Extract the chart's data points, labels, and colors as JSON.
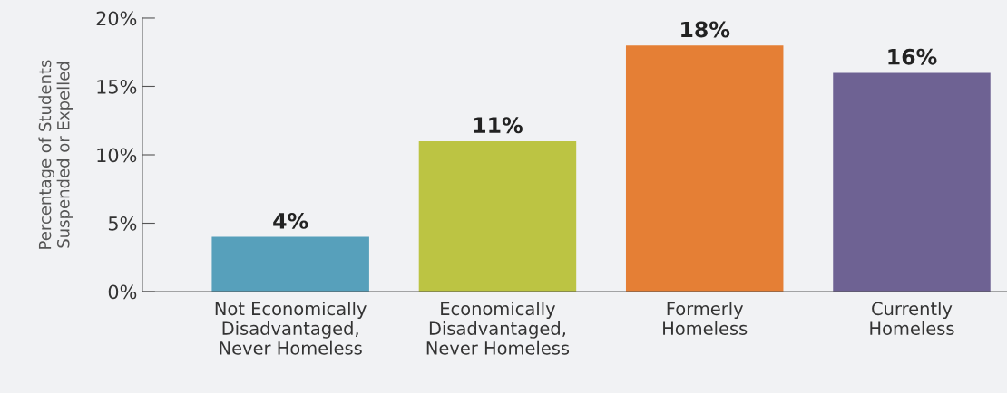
{
  "chart_data": {
    "type": "bar",
    "ylabel": "Percentage of Students\nSuspended or Expelled",
    "categories": [
      "Not Economically\nDisadvantaged,\nNever Homeless",
      "Economically\nDisadvantaged,\nNever Homeless",
      "Formerly\nHomeless",
      "Currently\nHomeless"
    ],
    "values": [
      4,
      11,
      18,
      16
    ],
    "colors": [
      "#57a0bb",
      "#bcc443",
      "#e57f35",
      "#6e6293"
    ],
    "value_labels": [
      "4%",
      "11%",
      "18%",
      "16%"
    ],
    "ylim": [
      0,
      20
    ],
    "yticks": [
      {
        "value": 0,
        "label": "0%"
      },
      {
        "value": 5,
        "label": "5%"
      },
      {
        "value": 10,
        "label": "10%"
      },
      {
        "value": 15,
        "label": "15%"
      },
      {
        "value": 20,
        "label": "20%"
      }
    ],
    "grid": false
  }
}
